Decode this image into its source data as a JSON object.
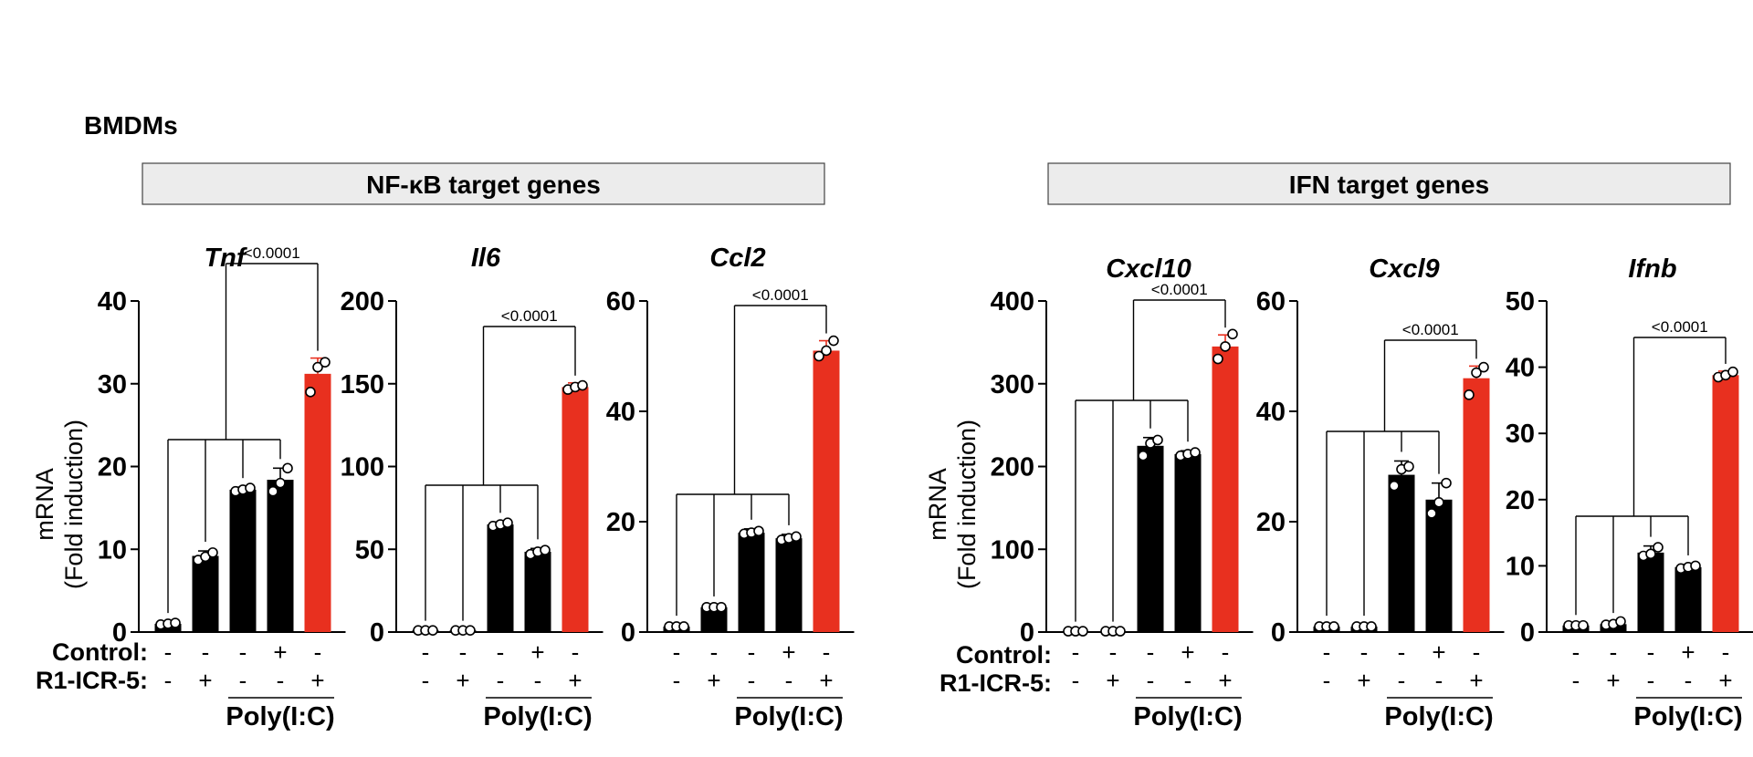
{
  "figure": {
    "panel_label": "BMDMs",
    "groups": [
      {
        "name": "NF-κB target genes"
      },
      {
        "name": "IFN target genes"
      }
    ],
    "y_label_line1": "mRNA",
    "y_label_line2": "(Fold induction)",
    "condition_rows": [
      "Control:",
      "R1-ICR-5:"
    ],
    "treatment_label": "Poly(I:C)",
    "control_signs": [
      "-",
      "-",
      "-",
      "+",
      "-"
    ],
    "inhibitor_signs": [
      "-",
      "+",
      "-",
      "-",
      "+"
    ]
  },
  "colors": {
    "black_bar": "#000000",
    "red_bar": "#e8301f",
    "header_fill": "#ececec"
  },
  "chart_data": [
    {
      "type": "bar",
      "title": "Tnf",
      "group": "NF-κB target genes",
      "ylabel": "mRNA (Fold induction)",
      "ylim": [
        0,
        40
      ],
      "yticks": [
        "0",
        "10",
        "20",
        "30",
        "40"
      ],
      "values": [
        1.0,
        9.2,
        17.2,
        18.4,
        31.2
      ],
      "errors": [
        0.2,
        0.6,
        0.3,
        1.4,
        1.9
      ],
      "points": [
        [
          0.9,
          1.0,
          1.1
        ],
        [
          8.7,
          9.1,
          9.6
        ],
        [
          17.0,
          17.2,
          17.4
        ],
        [
          17.0,
          18.0,
          19.8
        ],
        [
          29.0,
          32.0,
          32.6
        ]
      ],
      "bar_colors": [
        "black",
        "black",
        "black",
        "black",
        "red"
      ],
      "pvalue": "<0.0001"
    },
    {
      "type": "bar",
      "title": "Il6",
      "group": "NF-κB target genes",
      "ylim": [
        0,
        200
      ],
      "yticks": [
        "0",
        "50",
        "100",
        "150",
        "200"
      ],
      "values": [
        1.0,
        1.0,
        65.0,
        48.5,
        148.0
      ],
      "errors": [
        0.3,
        0.3,
        1.5,
        2.0,
        2.5
      ],
      "points": [
        [
          1.0,
          1.0,
          1.0
        ],
        [
          1.0,
          1.0,
          1.0
        ],
        [
          64.0,
          65.0,
          66.0
        ],
        [
          47.0,
          48.5,
          49.5
        ],
        [
          146.5,
          148.0,
          149.0
        ]
      ],
      "bar_colors": [
        "black",
        "black",
        "black",
        "black",
        "red"
      ],
      "pvalue": "<0.0001"
    },
    {
      "type": "bar",
      "title": "Ccl2",
      "group": "NF-κB target genes",
      "ylim": [
        0,
        60
      ],
      "yticks": [
        "0",
        "20",
        "40",
        "60"
      ],
      "values": [
        1.0,
        4.5,
        18.0,
        17.0,
        51.0
      ],
      "errors": [
        0.3,
        0.3,
        0.7,
        0.7,
        1.8
      ],
      "points": [
        [
          1.0,
          1.0,
          1.0
        ],
        [
          4.5,
          4.5,
          4.5
        ],
        [
          17.8,
          18.0,
          18.3
        ],
        [
          16.7,
          17.0,
          17.3
        ],
        [
          50.0,
          51.0,
          52.8
        ]
      ],
      "bar_colors": [
        "black",
        "black",
        "black",
        "black",
        "red"
      ],
      "pvalue": "<0.0001"
    },
    {
      "type": "bar",
      "title": "Cxcl10",
      "group": "IFN target genes",
      "ylabel": "mRNA (Fold induction)",
      "ylim": [
        0,
        400
      ],
      "yticks": [
        "0",
        "100",
        "200",
        "300",
        "400"
      ],
      "values": [
        1.0,
        1.0,
        225.0,
        215.0,
        345.0
      ],
      "errors": [
        0.5,
        0.5,
        10.0,
        4.0,
        14.0
      ],
      "points": [
        [
          1.0,
          1.0,
          1.0
        ],
        [
          1.0,
          1.0,
          1.0
        ],
        [
          213.0,
          228.0,
          232.0
        ],
        [
          213.0,
          215.0,
          217.0
        ],
        [
          330.0,
          345.0,
          360.0
        ]
      ],
      "bar_colors": [
        "black",
        "black",
        "black",
        "black",
        "red"
      ],
      "pvalue": "<0.0001"
    },
    {
      "type": "bar",
      "title": "Cxcl9",
      "group": "IFN target genes",
      "ylim": [
        0,
        60
      ],
      "yticks": [
        "0",
        "20",
        "40",
        "60"
      ],
      "values": [
        1.0,
        1.0,
        28.5,
        24.0,
        46.0
      ],
      "errors": [
        0.3,
        0.3,
        2.5,
        3.0,
        2.2
      ],
      "points": [
        [
          1.0,
          1.0,
          1.0
        ],
        [
          1.0,
          1.0,
          1.0
        ],
        [
          26.5,
          29.5,
          30.0
        ],
        [
          21.5,
          23.5,
          27.0
        ],
        [
          43.0,
          47.0,
          48.0
        ]
      ],
      "bar_colors": [
        "black",
        "black",
        "black",
        "black",
        "red"
      ],
      "pvalue": "<0.0001"
    },
    {
      "type": "bar",
      "title": "Ifnb",
      "group": "IFN target genes",
      "ylim": [
        0,
        50
      ],
      "yticks": [
        "0",
        "10",
        "20",
        "30",
        "40",
        "50"
      ],
      "values": [
        1.0,
        1.2,
        12.0,
        9.8,
        38.8
      ],
      "errors": [
        0.2,
        0.3,
        1.0,
        0.4,
        0.6
      ],
      "points": [
        [
          1.0,
          1.0,
          1.0
        ],
        [
          1.1,
          1.2,
          1.6
        ],
        [
          11.5,
          11.8,
          12.8
        ],
        [
          9.6,
          9.8,
          10.0
        ],
        [
          38.5,
          38.8,
          39.3
        ]
      ],
      "bar_colors": [
        "black",
        "black",
        "black",
        "black",
        "red"
      ],
      "pvalue": "<0.0001"
    }
  ]
}
